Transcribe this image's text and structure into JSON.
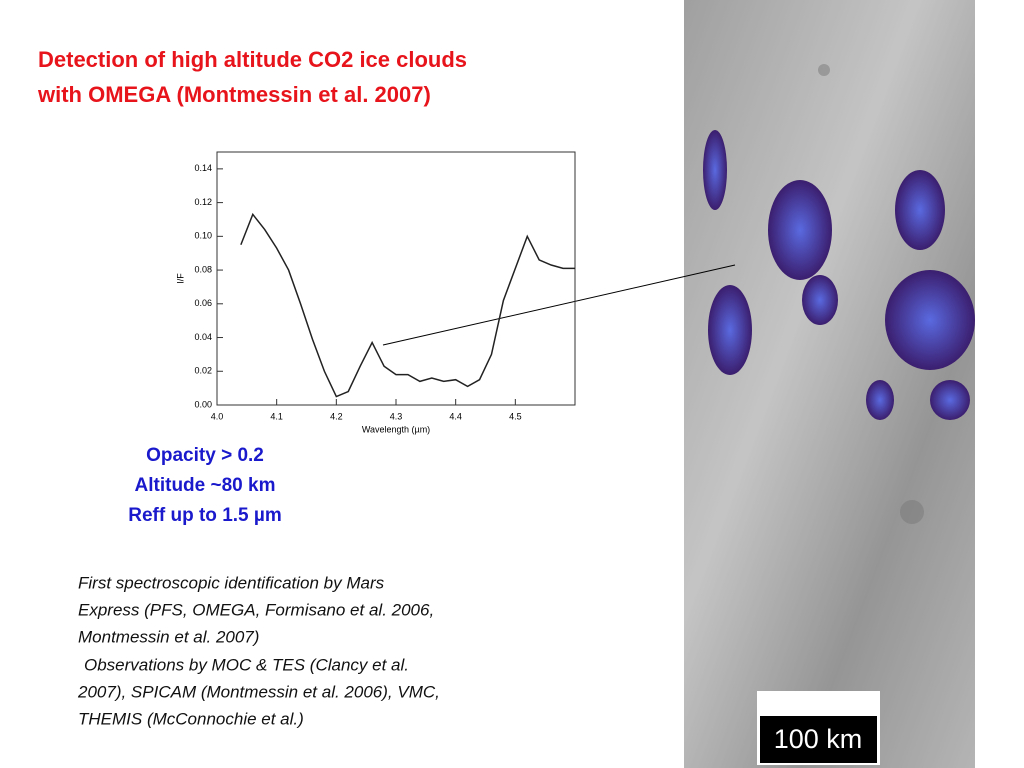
{
  "title_lines": [
    "Detection of high altitude CO2 ice clouds",
    "with OMEGA (Montmessin et al. 2007)"
  ],
  "chart_data": {
    "type": "line",
    "x": [
      4.04,
      4.06,
      4.08,
      4.1,
      4.12,
      4.14,
      4.16,
      4.18,
      4.2,
      4.22,
      4.24,
      4.26,
      4.28,
      4.3,
      4.32,
      4.34,
      4.36,
      4.38,
      4.4,
      4.42,
      4.44,
      4.46,
      4.48,
      4.5,
      4.52,
      4.54,
      4.56,
      4.58,
      4.6
    ],
    "values": [
      0.095,
      0.113,
      0.104,
      0.093,
      0.08,
      0.06,
      0.039,
      0.02,
      0.005,
      0.008,
      0.023,
      0.037,
      0.023,
      0.018,
      0.018,
      0.014,
      0.016,
      0.014,
      0.015,
      0.011,
      0.015,
      0.03,
      0.062,
      0.081,
      0.1,
      0.086,
      0.083,
      0.081,
      0.081
    ],
    "color": "#222222",
    "xlim": [
      4.0,
      4.6
    ],
    "xticks": [
      {
        "value": 4,
        "label": "4.0"
      },
      4.1,
      4.2,
      4.3,
      4.4,
      4.5
    ],
    "ylim": [
      0,
      0.15
    ],
    "yticks": [
      {
        "value": 0,
        "label": "0.00"
      },
      0.02,
      0.04,
      0.06,
      0.08,
      {
        "value": 0.1,
        "label": "0.10"
      },
      0.12,
      0.14
    ],
    "x_label": "Wavelength (µm)",
    "y_label": "I/F"
  },
  "properties": [
    "Opacity > 0.2",
    "Altitude ~80 km",
    "Reff up to 1.5 µm"
  ],
  "notes": [
    "First spectroscopic identification by Mars",
    "Express (PFS, OMEGA, Formisano et al. 2006,",
    "Montmessin et al. 2007)",
    "Observations by MOC & TES (Clancy et al.",
    "2007), SPICAM (Montmessin et al. 2006), VMC,",
    "THEMIS (McConnochie et al.)"
  ],
  "scale_bar": "100 km"
}
